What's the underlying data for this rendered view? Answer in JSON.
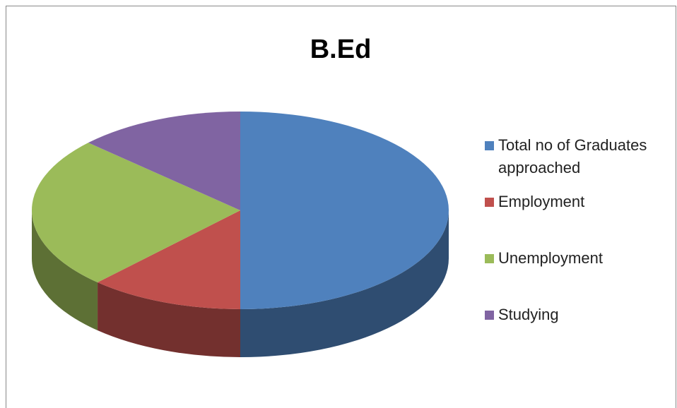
{
  "chart_data": {
    "type": "pie",
    "title": "B.Ed",
    "categories": [
      "Total no of Graduates approached",
      "Employment",
      "Unemployment",
      "Studying"
    ],
    "values": [
      50,
      12,
      25,
      13
    ],
    "colors": [
      "#4f81bd",
      "#c0504d",
      "#9bbb59",
      "#8064a2"
    ],
    "legend": "right"
  }
}
